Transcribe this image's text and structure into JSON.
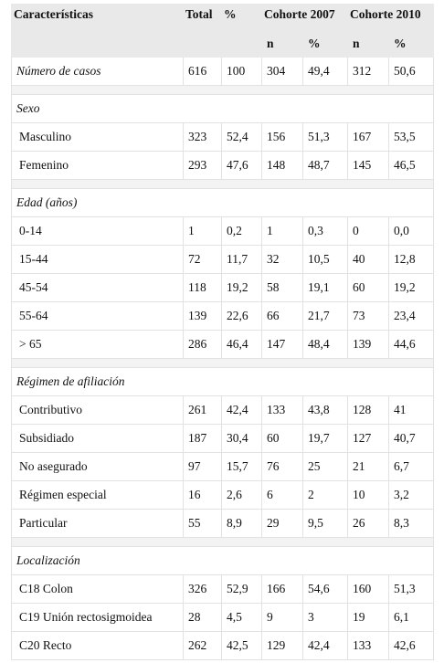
{
  "table": {
    "header": {
      "columns": [
        "Características",
        "Total",
        "%",
        "Cohorte 2007",
        "Cohorte 2010"
      ],
      "subcolumns": [
        "n",
        "%",
        "n",
        "%"
      ]
    },
    "summary": {
      "label": "Número de casos",
      "values": [
        "616",
        "100",
        "304",
        "49,4",
        "312",
        "50,6"
      ]
    },
    "sections": [
      {
        "title": "Sexo",
        "rows": [
          {
            "label": "Masculino",
            "values": [
              "323",
              "52,4",
              "156",
              "51,3",
              "167",
              "53,5"
            ]
          },
          {
            "label": "Femenino",
            "values": [
              "293",
              "47,6",
              "148",
              "48,7",
              "145",
              "46,5"
            ]
          }
        ]
      },
      {
        "title": "Edad (años)",
        "rows": [
          {
            "label": "0-14",
            "values": [
              "1",
              "0,2",
              "1",
              "0,3",
              "0",
              "0,0"
            ]
          },
          {
            "label": "15-44",
            "values": [
              "72",
              "11,7",
              "32",
              "10,5",
              "40",
              "12,8"
            ]
          },
          {
            "label": "45-54",
            "values": [
              "118",
              "19,2",
              "58",
              "19,1",
              "60",
              "19,2"
            ]
          },
          {
            "label": "55-64",
            "values": [
              "139",
              "22,6",
              "66",
              "21,7",
              "73",
              "23,4"
            ]
          },
          {
            "label": "> 65",
            "values": [
              "286",
              "46,4",
              "147",
              "48,4",
              "139",
              "44,6"
            ]
          }
        ]
      },
      {
        "title": "Régimen de afiliación",
        "rows": [
          {
            "label": "Contributivo",
            "values": [
              "261",
              "42,4",
              "133",
              "43,8",
              "128",
              "41"
            ]
          },
          {
            "label": "Subsidiado",
            "values": [
              "187",
              "30,4",
              "60",
              "19,7",
              "127",
              "40,7"
            ]
          },
          {
            "label": "No asegurado",
            "values": [
              "97",
              "15,7",
              "76",
              "25",
              "21",
              "6,7"
            ]
          },
          {
            "label": "Régimen especial",
            "values": [
              "16",
              "2,6",
              "6",
              "2",
              "10",
              "3,2"
            ]
          },
          {
            "label": "Particular",
            "values": [
              "55",
              "8,9",
              "29",
              "9,5",
              "26",
              "8,3"
            ]
          }
        ]
      },
      {
        "title": "Localización",
        "rows": [
          {
            "label": "C18 Colon",
            "values": [
              "326",
              "52,9",
              "166",
              "54,6",
              "160",
              "51,3"
            ]
          },
          {
            "label": "C19 Unión rectosigmoidea",
            "values": [
              "28",
              "4,5",
              "9",
              "3",
              "19",
              "6,1"
            ]
          },
          {
            "label": "C20 Recto",
            "values": [
              "262",
              "42,5",
              "129",
              "42,4",
              "133",
              "42,6"
            ]
          }
        ]
      }
    ]
  }
}
